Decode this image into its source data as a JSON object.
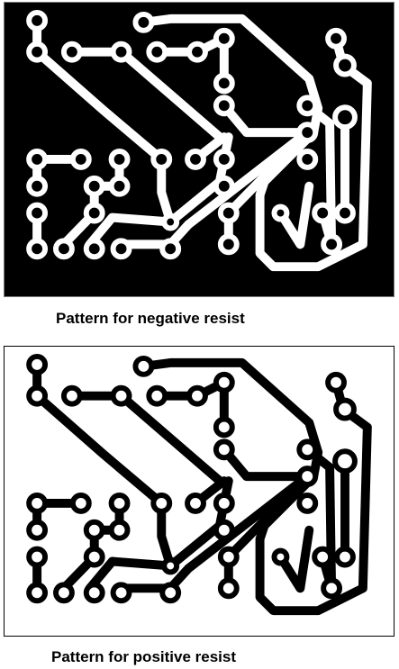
{
  "captions": {
    "negative": "Pattern for negative resist",
    "positive": "Pattern for positive resist"
  },
  "colors": {
    "negative_background": "#000000",
    "negative_copper": "#ffffff",
    "positive_background": "#ffffff",
    "positive_copper": "#000000"
  }
}
